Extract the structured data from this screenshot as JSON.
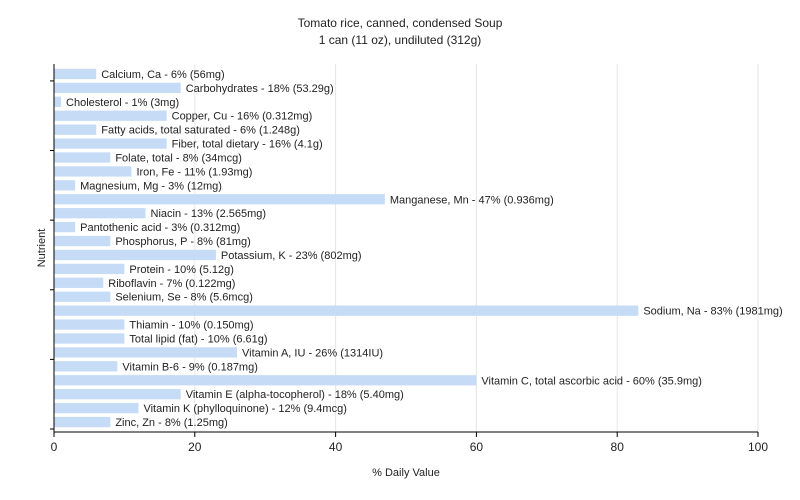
{
  "chart_data": {
    "type": "bar",
    "orientation": "horizontal",
    "title": "Tomato rice, canned, condensed Soup",
    "subtitle": "1 can (11 oz), undiluted (312g)",
    "xlabel": "% Daily Value",
    "ylabel": "Nutrient",
    "xlim": [
      0,
      100
    ],
    "xticks": [
      0,
      20,
      40,
      60,
      80,
      100
    ],
    "grid": true,
    "bar_color": "#c6dcf6",
    "bars": [
      {
        "value": 6,
        "label": "Calcium, Ca - 6% (56mg)"
      },
      {
        "value": 18,
        "label": "Carbohydrates - 18% (53.29g)"
      },
      {
        "value": 1,
        "label": "Cholesterol - 1% (3mg)"
      },
      {
        "value": 16,
        "label": "Copper, Cu - 16% (0.312mg)"
      },
      {
        "value": 6,
        "label": "Fatty acids, total saturated - 6% (1.248g)"
      },
      {
        "value": 16,
        "label": "Fiber, total dietary - 16% (4.1g)"
      },
      {
        "value": 8,
        "label": "Folate, total - 8% (34mcg)"
      },
      {
        "value": 11,
        "label": "Iron, Fe - 11% (1.93mg)"
      },
      {
        "value": 3,
        "label": "Magnesium, Mg - 3% (12mg)"
      },
      {
        "value": 47,
        "label": "Manganese, Mn - 47% (0.936mg)"
      },
      {
        "value": 13,
        "label": "Niacin - 13% (2.565mg)"
      },
      {
        "value": 3,
        "label": "Pantothenic acid - 3% (0.312mg)"
      },
      {
        "value": 8,
        "label": "Phosphorus, P - 8% (81mg)"
      },
      {
        "value": 23,
        "label": "Potassium, K - 23% (802mg)"
      },
      {
        "value": 10,
        "label": "Protein - 10% (5.12g)"
      },
      {
        "value": 7,
        "label": "Riboflavin - 7% (0.122mg)"
      },
      {
        "value": 8,
        "label": "Selenium, Se - 8% (5.6mcg)"
      },
      {
        "value": 83,
        "label": "Sodium, Na - 83% (1981mg)"
      },
      {
        "value": 10,
        "label": "Thiamin - 10% (0.150mg)"
      },
      {
        "value": 10,
        "label": "Total lipid (fat) - 10% (6.61g)"
      },
      {
        "value": 26,
        "label": "Vitamin A, IU - 26% (1314IU)"
      },
      {
        "value": 9,
        "label": "Vitamin B-6 - 9% (0.187mg)"
      },
      {
        "value": 60,
        "label": "Vitamin C, total ascorbic acid - 60% (35.9mg)"
      },
      {
        "value": 18,
        "label": "Vitamin E (alpha-tocopherol) - 18% (5.40mg)"
      },
      {
        "value": 12,
        "label": "Vitamin K (phylloquinone) - 12% (9.4mcg)"
      },
      {
        "value": 8,
        "label": "Zinc, Zn - 8% (1.25mg)"
      }
    ]
  }
}
